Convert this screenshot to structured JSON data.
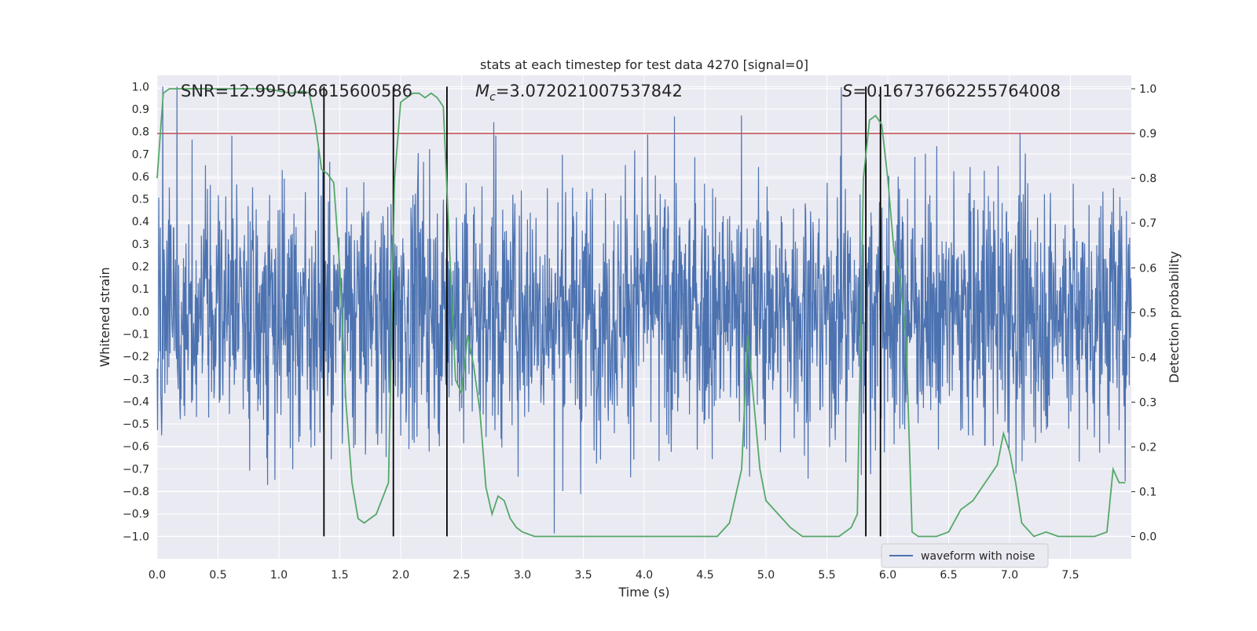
{
  "chart_data": {
    "type": "line",
    "title": "stats at each timestep for test data 4270 [signal=0]",
    "xlabel": "Time (s)",
    "ylabel": "Whitened strain",
    "ylabel_right": "Detection probability",
    "xlim": [
      0.0,
      8.0
    ],
    "ylim": [
      -1.1,
      1.05
    ],
    "ylim_right": [
      -0.05,
      1.03
    ],
    "x_ticks": [
      "0.0",
      "0.5",
      "1.0",
      "1.5",
      "2.0",
      "2.5",
      "3.0",
      "3.5",
      "4.0",
      "4.5",
      "5.0",
      "5.5",
      "6.0",
      "6.5",
      "7.0",
      "7.5"
    ],
    "y_ticks": [
      "1.0",
      "0.9",
      "0.8",
      "0.7",
      "0.6",
      "0.5",
      "0.4",
      "0.3",
      "0.2",
      "0.1",
      "0.0",
      "−0.1",
      "−0.2",
      "−0.3",
      "−0.4",
      "−0.5",
      "−0.6",
      "−0.7",
      "−0.8",
      "−0.9",
      "−1.0"
    ],
    "y_ticks_right": [
      "1.0",
      "0.9",
      "0.8",
      "0.7",
      "0.6",
      "0.5",
      "0.4",
      "0.3",
      "0.2",
      "0.1",
      "0.0"
    ],
    "annotations": {
      "snr": "SNR=12.995046615600586",
      "mc_symbol": "M",
      "mc_sub": "c",
      "mc_value": "=3.072021007537842",
      "s_symbol": "S",
      "s_value": "=0.16737662255764008"
    },
    "threshold": 0.9,
    "vertical_lines_x": [
      1.37,
      1.94,
      2.38,
      5.82,
      5.94
    ],
    "vertical_lines_range": [
      -1.0,
      1.0
    ],
    "series": [
      {
        "name": "waveform with noise",
        "color": "#4c72b0",
        "x_range": [
          0.0,
          8.0
        ],
        "typical_amplitude": 0.5,
        "peak_amplitude": 1.0
      },
      {
        "color": "#55a868",
        "axis": "right",
        "x": [
          0.0,
          0.05,
          0.1,
          0.15,
          0.2,
          0.3,
          0.5,
          0.7,
          0.9,
          1.1,
          1.2,
          1.25,
          1.3,
          1.35,
          1.4,
          1.45,
          1.5,
          1.55,
          1.6,
          1.65,
          1.7,
          1.8,
          1.9,
          1.95,
          2.0,
          2.05,
          2.1,
          2.15,
          2.2,
          2.25,
          2.3,
          2.35,
          2.4,
          2.45,
          2.5,
          2.55,
          2.6,
          2.65,
          2.7,
          2.75,
          2.8,
          2.85,
          2.9,
          2.95,
          3.0,
          3.1,
          3.3,
          3.5,
          4.0,
          4.3,
          4.5,
          4.6,
          4.7,
          4.8,
          4.85,
          4.9,
          4.95,
          5.0,
          5.1,
          5.2,
          5.3,
          5.5,
          5.6,
          5.7,
          5.75,
          5.8,
          5.85,
          5.9,
          5.95,
          6.0,
          6.05,
          6.1,
          6.15,
          6.2,
          6.25,
          6.3,
          6.4,
          6.5,
          6.6,
          6.7,
          6.8,
          6.9,
          6.95,
          7.0,
          7.05,
          7.1,
          7.2,
          7.3,
          7.4,
          7.5,
          7.6,
          7.7,
          7.8,
          7.85,
          7.9,
          7.95
        ],
        "y": [
          0.8,
          0.99,
          1.0,
          1.0,
          1.0,
          1.0,
          1.0,
          1.0,
          1.0,
          0.99,
          0.995,
          0.99,
          0.92,
          0.82,
          0.81,
          0.79,
          0.6,
          0.3,
          0.12,
          0.04,
          0.03,
          0.05,
          0.12,
          0.8,
          0.97,
          0.98,
          0.99,
          0.99,
          0.98,
          0.99,
          0.98,
          0.96,
          0.65,
          0.35,
          0.32,
          0.45,
          0.38,
          0.28,
          0.11,
          0.05,
          0.09,
          0.08,
          0.04,
          0.02,
          0.01,
          0.0,
          0.0,
          0.0,
          0.0,
          0.0,
          0.0,
          0.0,
          0.03,
          0.15,
          0.45,
          0.3,
          0.15,
          0.08,
          0.05,
          0.02,
          0.0,
          0.0,
          0.0,
          0.02,
          0.05,
          0.8,
          0.93,
          0.94,
          0.92,
          0.8,
          0.64,
          0.58,
          0.44,
          0.01,
          0.0,
          0.0,
          0.0,
          0.01,
          0.06,
          0.08,
          0.12,
          0.16,
          0.23,
          0.19,
          0.12,
          0.03,
          0.0,
          0.01,
          0.0,
          0.0,
          0.0,
          0.0,
          0.01,
          0.15,
          0.12,
          0.12
        ]
      }
    ],
    "legend": {
      "placement": "lower-right"
    },
    "grid": true,
    "style": {
      "facecolor": "#eaeaf2",
      "gridcolor": "#ffffff",
      "threshold_color": "#c44e52",
      "vline_color": "#000000"
    }
  }
}
